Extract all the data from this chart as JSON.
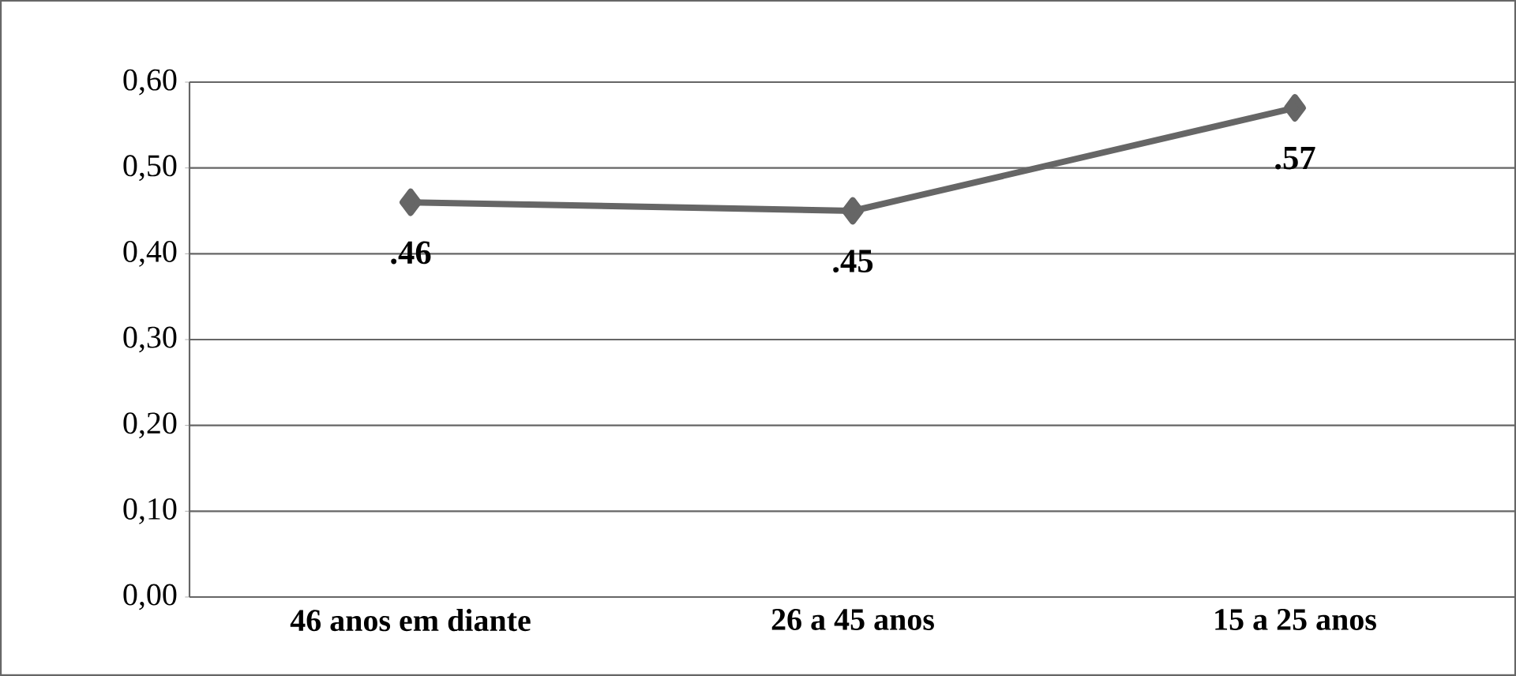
{
  "chart_data": {
    "type": "line",
    "categories": [
      "46 anos em diante",
      "26 a 45 anos",
      "15 a 25 anos"
    ],
    "values": [
      0.46,
      0.45,
      0.57
    ],
    "value_labels": [
      ".46",
      ".45",
      ".57"
    ],
    "color": "#666666",
    "marker": "diamond",
    "grid": "y",
    "ylim": [
      0,
      0.6
    ],
    "yticks": [
      {
        "value": 0,
        "label": "0,00"
      },
      {
        "value": 0.1,
        "label": "0,10"
      },
      {
        "value": 0.2,
        "label": "0,20"
      },
      {
        "value": 0.3,
        "label": "0,30"
      },
      {
        "value": 0.4,
        "label": "0,40"
      },
      {
        "value": 0.5,
        "label": "0,50"
      },
      {
        "value": 0.6,
        "label": "0,60"
      }
    ]
  }
}
